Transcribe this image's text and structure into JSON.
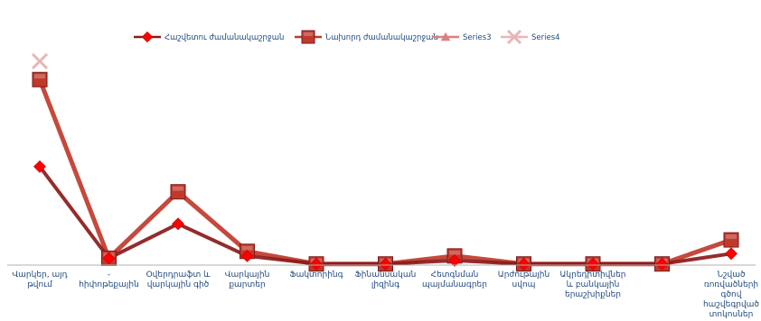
{
  "chart_data": {
    "type": "line",
    "title": "",
    "xlabel": "",
    "ylabel": "",
    "ylim": [
      0,
      100
    ],
    "grid": false,
    "legend_position": "top",
    "categories": [
      "Վարկեր, այդ թվում",
      "- հիփոթեքային",
      "Օվերդրաֆտ և վարկային գիծ",
      "Վարկային քարտեր",
      "Ֆակտորինգ",
      "Ֆինանսական լիզինգ",
      "Հետգնման պայմանագրեր",
      "Արժութային սվոպ",
      "Ակրեդիտիվներ և բանկային երաշխիքներ",
      "",
      "Նշված ռոռվածների գծով հաշվեգրված տոկոսներ"
    ],
    "series": [
      {
        "name": "Հաշվետու ժամանակաշրջան",
        "color": "#8b1a1a",
        "marker": "diamond",
        "values": [
          43,
          3,
          18,
          4,
          0.5,
          0.5,
          2,
          0.5,
          0.5,
          0.5,
          5
        ]
      },
      {
        "name": "Նախորդ ժամանակաշրջան",
        "color": "#c0392b",
        "marker": "square",
        "values": [
          81,
          3,
          32,
          6,
          0.5,
          0.5,
          4,
          0.5,
          0.5,
          0.5,
          11
        ]
      },
      {
        "name": "Series3",
        "color": "#d98080",
        "marker": "triangle",
        "values": [
          null,
          null,
          null,
          null,
          null,
          null,
          null,
          null,
          null,
          null,
          null
        ]
      },
      {
        "name": "Series4",
        "color": "#e8b6b6",
        "marker": "x",
        "values": [
          89,
          null,
          null,
          null,
          null,
          null,
          null,
          null,
          null,
          null,
          null
        ]
      }
    ]
  }
}
